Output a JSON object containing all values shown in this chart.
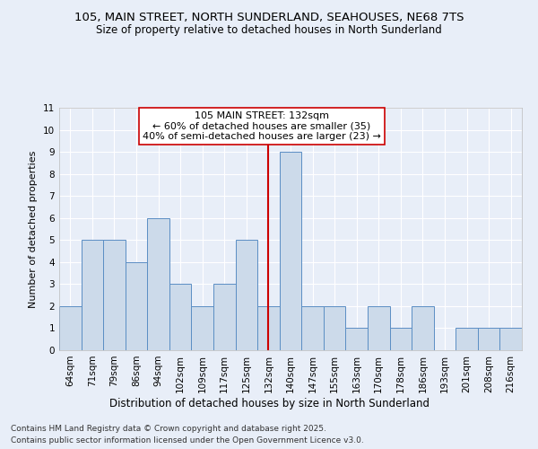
{
  "title1": "105, MAIN STREET, NORTH SUNDERLAND, SEAHOUSES, NE68 7TS",
  "title2": "Size of property relative to detached houses in North Sunderland",
  "xlabel": "Distribution of detached houses by size in North Sunderland",
  "ylabel": "Number of detached properties",
  "footer1": "Contains HM Land Registry data © Crown copyright and database right 2025.",
  "footer2": "Contains public sector information licensed under the Open Government Licence v3.0.",
  "annotation_line1": "105 MAIN STREET: 132sqm",
  "annotation_line2": "← 60% of detached houses are smaller (35)",
  "annotation_line3": "40% of semi-detached houses are larger (23) →",
  "bins": [
    "64sqm",
    "71sqm",
    "79sqm",
    "86sqm",
    "94sqm",
    "102sqm",
    "109sqm",
    "117sqm",
    "125sqm",
    "132sqm",
    "140sqm",
    "147sqm",
    "155sqm",
    "163sqm",
    "170sqm",
    "178sqm",
    "186sqm",
    "193sqm",
    "201sqm",
    "208sqm",
    "216sqm"
  ],
  "values": [
    2,
    5,
    5,
    4,
    6,
    3,
    2,
    3,
    5,
    2,
    9,
    2,
    2,
    1,
    2,
    1,
    2,
    0,
    1,
    1,
    1
  ],
  "bar_color": "#ccdaea",
  "bar_edge_color": "#5b8ec4",
  "ref_line_index": 9,
  "ref_line_color": "#cc0000",
  "annotation_box_edge": "#cc0000",
  "background_color": "#e8eef8",
  "plot_bg_color": "#e8eef8",
  "ylim": [
    0,
    11
  ],
  "yticks": [
    0,
    1,
    2,
    3,
    4,
    5,
    6,
    7,
    8,
    9,
    10,
    11
  ],
  "grid_color": "#ffffff",
  "title_fontsize": 9.5,
  "subtitle_fontsize": 8.5,
  "ylabel_fontsize": 8,
  "xlabel_fontsize": 8.5,
  "tick_fontsize": 7.5,
  "annotation_fontsize": 8,
  "footer_fontsize": 6.5
}
